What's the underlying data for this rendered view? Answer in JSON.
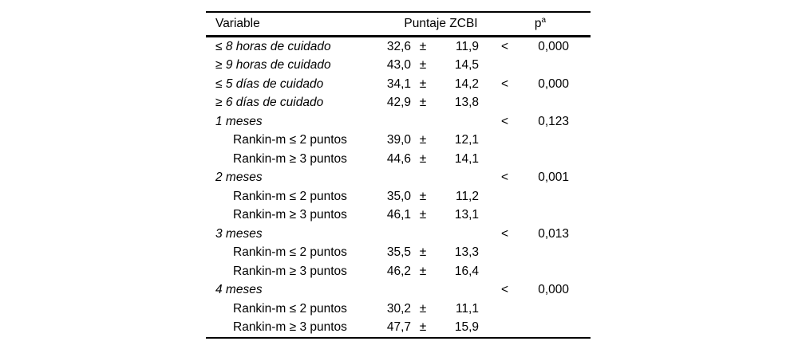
{
  "table": {
    "headers": {
      "variable": "Variable",
      "score": "Puntaje ZCBI",
      "p_base": "p",
      "p_sup": "a"
    },
    "rows": [
      {
        "label": "≤ 8 horas de cuidado",
        "italic": true,
        "indent": false,
        "mean": "32,6",
        "pm": "±",
        "sd": "11,9",
        "lt": "<",
        "p": "0,000"
      },
      {
        "label": "≥ 9 horas de cuidado",
        "italic": true,
        "indent": false,
        "mean": "43,0",
        "pm": "±",
        "sd": "14,5",
        "lt": "",
        "p": ""
      },
      {
        "label": "≤ 5 días de cuidado",
        "italic": true,
        "indent": false,
        "mean": "34,1",
        "pm": "±",
        "sd": "14,2",
        "lt": "<",
        "p": "0,000"
      },
      {
        "label": "≥ 6 días de cuidado",
        "italic": true,
        "indent": false,
        "mean": "42,9",
        "pm": "±",
        "sd": "13,8",
        "lt": "",
        "p": ""
      },
      {
        "label": "1 meses",
        "italic": true,
        "indent": false,
        "mean": "",
        "pm": "",
        "sd": "",
        "lt": "<",
        "p": "0,123"
      },
      {
        "label": "Rankin-m ≤ 2 puntos",
        "italic": false,
        "indent": true,
        "mean": "39,0",
        "pm": "±",
        "sd": "12,1",
        "lt": "",
        "p": ""
      },
      {
        "label": "Rankin-m ≥ 3 puntos",
        "italic": false,
        "indent": true,
        "mean": "44,6",
        "pm": "±",
        "sd": "14,1",
        "lt": "",
        "p": ""
      },
      {
        "label": "2 meses",
        "italic": true,
        "indent": false,
        "mean": "",
        "pm": "",
        "sd": "",
        "lt": "<",
        "p": "0,001"
      },
      {
        "label": "Rankin-m ≤ 2 puntos",
        "italic": false,
        "indent": true,
        "mean": "35,0",
        "pm": "±",
        "sd": "11,2",
        "lt": "",
        "p": ""
      },
      {
        "label": "Rankin-m ≥ 3 puntos",
        "italic": false,
        "indent": true,
        "mean": "46,1",
        "pm": "±",
        "sd": "13,1",
        "lt": "",
        "p": ""
      },
      {
        "label": "3 meses",
        "italic": true,
        "indent": false,
        "mean": "",
        "pm": "",
        "sd": "",
        "lt": "<",
        "p": "0,013"
      },
      {
        "label": "Rankin-m ≤ 2 puntos",
        "italic": false,
        "indent": true,
        "mean": "35,5",
        "pm": "±",
        "sd": "13,3",
        "lt": "",
        "p": ""
      },
      {
        "label": "Rankin-m ≥ 3 puntos",
        "italic": false,
        "indent": true,
        "mean": "46,2",
        "pm": "±",
        "sd": "16,4",
        "lt": "",
        "p": ""
      },
      {
        "label": "4 meses",
        "italic": true,
        "indent": false,
        "mean": "",
        "pm": "",
        "sd": "",
        "lt": "<",
        "p": "0,000"
      },
      {
        "label": "Rankin-m ≤ 2 puntos",
        "italic": false,
        "indent": true,
        "mean": "30,2",
        "pm": "±",
        "sd": "11,1",
        "lt": "",
        "p": ""
      },
      {
        "label": "Rankin-m ≥ 3 puntos",
        "italic": false,
        "indent": true,
        "mean": "47,7",
        "pm": "±",
        "sd": "15,9",
        "lt": "",
        "p": ""
      }
    ]
  }
}
